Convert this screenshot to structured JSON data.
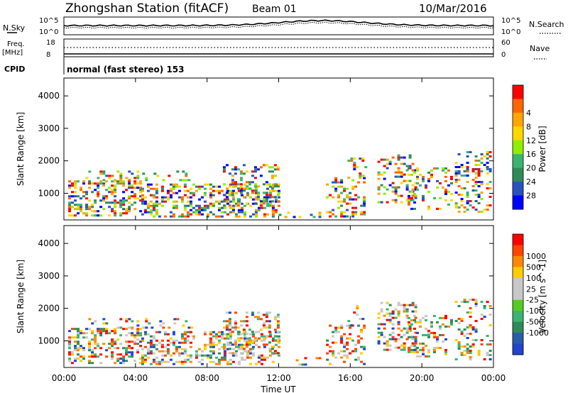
{
  "header": {
    "title": "Zhongshan Station (fitACF)",
    "beam": "Beam 01",
    "date": "10/Mar/2016"
  },
  "top_panels": {
    "nsky_label": "N.Sky",
    "nsky_ticks": [
      "10^5",
      "10^0"
    ],
    "nsearch_label": "N.Search",
    "nsearch_ticks": [
      "10^5",
      "10^0"
    ],
    "freq_label": "Freq.",
    "freq_unit": "[MHz]",
    "freq_ticks": [
      "18",
      "8"
    ],
    "nave_label": "Nave",
    "nave_ticks": [
      "60",
      "0"
    ],
    "cpid_label": "CPID",
    "cpid_text": "normal (fast stereo) 153"
  },
  "chart_data": [
    {
      "type": "heatmap",
      "name": "power",
      "ylabel": "Slant Range [km]",
      "xlabel": "",
      "ylim": [
        180,
        4550
      ],
      "yticks": [
        "1000",
        "2000",
        "3000",
        "4000"
      ],
      "colorbar_label": "Power [dB]",
      "colorbar_ticks": [
        "4",
        "8",
        "12",
        "16",
        "20",
        "24",
        "28"
      ],
      "colorbar_colors": [
        "#0000ff",
        "#2a52be",
        "#2e8b57",
        "#3cb371",
        "#90ee00",
        "#ffd700",
        "#ffa500",
        "#ff6600",
        "#ff0000"
      ]
    },
    {
      "type": "heatmap",
      "name": "velocity",
      "ylabel": "Slant Range [km]",
      "xlabel": "Time UT",
      "ylim": [
        180,
        4550
      ],
      "yticks": [
        "1000",
        "2000",
        "3000",
        "4000"
      ],
      "xticks": [
        "00:00",
        "04:00",
        "08:00",
        "12:00",
        "16:00",
        "20:00",
        "00:00"
      ],
      "colorbar_label": "Velocity [m s^-1]",
      "colorbar_ticks": [
        "1000",
        "500",
        "100",
        "25",
        "-25",
        "-100",
        "-500",
        "-1000"
      ],
      "colorbar_colors": [
        "#2244cc",
        "#2a5caa",
        "#2e8b57",
        "#3cb371",
        "#55cc22",
        "#c8c8c8",
        "#c8c8c8",
        "#ffcc00",
        "#ff8800",
        "#ff4400",
        "#ff0000"
      ]
    }
  ]
}
